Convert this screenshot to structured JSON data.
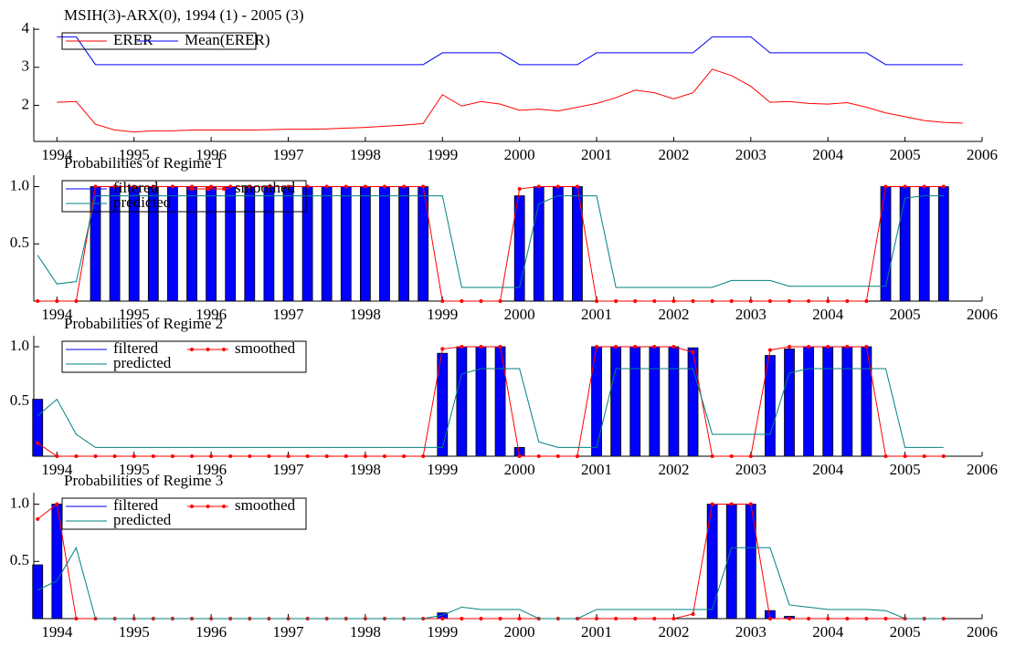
{
  "chart_data": [
    {
      "type": "line",
      "title": "MSIH(3)-ARX(0), 1994 (1) - 2005 (3)",
      "legend": "upper left",
      "x": [
        1994,
        1994.25,
        1994.5,
        1994.75,
        1995,
        1995.25,
        1995.5,
        1995.75,
        1996,
        1996.25,
        1996.5,
        1996.75,
        1997,
        1997.25,
        1997.5,
        1997.75,
        1998,
        1998.25,
        1998.5,
        1998.75,
        1999,
        1999.25,
        1999.5,
        1999.75,
        2000,
        2000.25,
        2000.5,
        2000.75,
        2001,
        2001.25,
        2001.5,
        2001.75,
        2002,
        2002.25,
        2002.5,
        2002.75,
        2003,
        2003.25,
        2003.5,
        2003.75,
        2004,
        2004.25,
        2004.5,
        2004.75,
        2005,
        2005.25,
        2005.5,
        2005.75
      ],
      "series": [
        {
          "name": "ERER",
          "color": "#ff0000",
          "type": "line",
          "values": [
            2.08,
            2.1,
            1.5,
            1.35,
            1.3,
            1.33,
            1.33,
            1.35,
            1.35,
            1.35,
            1.35,
            1.36,
            1.37,
            1.37,
            1.38,
            1.4,
            1.42,
            1.45,
            1.48,
            1.52,
            2.28,
            1.98,
            2.1,
            2.03,
            1.87,
            1.9,
            1.85,
            1.95,
            2.05,
            2.2,
            2.4,
            2.33,
            2.17,
            2.33,
            2.95,
            2.78,
            2.5,
            2.08,
            2.1,
            2.05,
            2.03,
            2.07,
            1.95,
            1.8,
            1.7,
            1.6,
            1.55,
            1.53
          ]
        },
        {
          "name": "Mean(ERER)",
          "color": "#0000ff",
          "type": "line",
          "values": [
            3.8,
            3.8,
            3.07,
            3.07,
            3.07,
            3.07,
            3.07,
            3.07,
            3.07,
            3.07,
            3.07,
            3.07,
            3.07,
            3.07,
            3.07,
            3.07,
            3.07,
            3.07,
            3.07,
            3.07,
            3.38,
            3.38,
            3.38,
            3.38,
            3.07,
            3.07,
            3.07,
            3.07,
            3.38,
            3.38,
            3.38,
            3.38,
            3.38,
            3.38,
            3.8,
            3.8,
            3.8,
            3.38,
            3.38,
            3.38,
            3.38,
            3.38,
            3.38,
            3.07,
            3.07,
            3.07,
            3.07,
            3.07
          ]
        }
      ],
      "xlim": [
        1993.7,
        2006
      ],
      "ylim": [
        1.05,
        4.05
      ],
      "xticks": [
        1994,
        1995,
        1996,
        1997,
        1998,
        1999,
        2000,
        2001,
        2002,
        2003,
        2004,
        2005,
        2006
      ],
      "yticks": [
        2,
        3,
        4
      ]
    },
    {
      "type": "combo",
      "title": "Probabilities of Regime 1",
      "legend": "upper left",
      "x": [
        1993.75,
        1994,
        1994.25,
        1994.5,
        1994.75,
        1995,
        1995.25,
        1995.5,
        1995.75,
        1996,
        1996.25,
        1996.5,
        1996.75,
        1997,
        1997.25,
        1997.5,
        1997.75,
        1998,
        1998.25,
        1998.5,
        1998.75,
        1999,
        1999.25,
        1999.5,
        1999.75,
        2000,
        2000.25,
        2000.5,
        2000.75,
        2001,
        2001.25,
        2001.5,
        2001.75,
        2002,
        2002.25,
        2002.5,
        2002.75,
        2003,
        2003.25,
        2003.5,
        2003.75,
        2004,
        2004.25,
        2004.5,
        2004.75,
        2005,
        2005.25,
        2005.5
      ],
      "series": [
        {
          "name": "filtered",
          "color": "#0000ff",
          "type": "bar",
          "values": [
            0,
            0,
            0,
            1,
            1,
            1,
            1,
            1,
            1,
            1,
            1,
            1,
            1,
            1,
            1,
            1,
            1,
            1,
            1,
            1,
            1,
            0,
            0,
            0,
            0,
            0.92,
            1,
            1,
            1,
            0,
            0,
            0,
            0,
            0,
            0,
            0,
            0,
            0,
            0,
            0,
            0,
            0,
            0,
            0,
            1,
            1,
            1,
            1
          ]
        },
        {
          "name": "smoothed",
          "color": "#ff0000",
          "type": "line",
          "markers": true,
          "values": [
            0,
            0,
            0,
            1,
            1,
            1,
            1,
            1,
            1,
            1,
            1,
            1,
            1,
            1,
            1,
            1,
            1,
            1,
            1,
            1,
            1,
            0,
            0,
            0,
            0,
            0.98,
            1,
            1,
            1,
            0,
            0,
            0,
            0,
            0,
            0,
            0,
            0,
            0,
            0,
            0,
            0,
            0,
            0,
            0,
            1,
            1,
            1,
            1
          ]
        },
        {
          "name": "predicted",
          "color": "#008080",
          "type": "line",
          "values": [
            0.4,
            0.15,
            0.17,
            0.92,
            0.92,
            0.92,
            0.92,
            0.92,
            0.92,
            0.92,
            0.92,
            0.92,
            0.92,
            0.92,
            0.92,
            0.92,
            0.92,
            0.92,
            0.92,
            0.92,
            0.92,
            0.92,
            0.12,
            0.12,
            0.12,
            0.12,
            0.85,
            0.92,
            0.92,
            0.92,
            0.12,
            0.12,
            0.12,
            0.12,
            0.12,
            0.12,
            0.18,
            0.18,
            0.18,
            0.13,
            0.13,
            0.13,
            0.13,
            0.13,
            0.13,
            0.9,
            0.92,
            0.92
          ]
        }
      ],
      "xlim": [
        1993.7,
        2006
      ],
      "ylim": [
        0,
        1.1
      ],
      "xticks": [
        1994,
        1995,
        1996,
        1997,
        1998,
        1999,
        2000,
        2001,
        2002,
        2003,
        2004,
        2005,
        2006
      ],
      "yticks": [
        0.5,
        {
          "value": 1,
          "label": "1.0"
        }
      ]
    },
    {
      "type": "combo",
      "title": "Probabilities of Regime 2",
      "legend": "upper left",
      "x": [
        1993.75,
        1994,
        1994.25,
        1994.5,
        1994.75,
        1995,
        1995.25,
        1995.5,
        1995.75,
        1996,
        1996.25,
        1996.5,
        1996.75,
        1997,
        1997.25,
        1997.5,
        1997.75,
        1998,
        1998.25,
        1998.5,
        1998.75,
        1999,
        1999.25,
        1999.5,
        1999.75,
        2000,
        2000.25,
        2000.5,
        2000.75,
        2001,
        2001.25,
        2001.5,
        2001.75,
        2002,
        2002.25,
        2002.5,
        2002.75,
        2003,
        2003.25,
        2003.5,
        2003.75,
        2004,
        2004.25,
        2004.5,
        2004.75,
        2005,
        2005.25,
        2005.5
      ],
      "series": [
        {
          "name": "filtered",
          "color": "#0000ff",
          "type": "bar",
          "values": [
            0.52,
            0,
            0,
            0,
            0,
            0,
            0,
            0,
            0,
            0,
            0,
            0,
            0,
            0,
            0,
            0,
            0,
            0,
            0,
            0,
            0,
            0.94,
            1,
            1,
            1,
            0.08,
            0,
            0,
            0,
            1,
            1,
            1,
            1,
            1,
            0.99,
            0,
            0,
            0,
            0.92,
            0.98,
            1,
            1,
            1,
            1,
            0,
            0,
            0,
            0
          ]
        },
        {
          "name": "smoothed",
          "color": "#ff0000",
          "type": "line",
          "markers": true,
          "values": [
            0.12,
            0,
            0,
            0,
            0,
            0,
            0,
            0,
            0,
            0,
            0,
            0,
            0,
            0,
            0,
            0,
            0,
            0,
            0,
            0,
            0,
            0.98,
            1,
            1,
            1,
            0,
            0,
            0,
            0,
            1,
            1,
            1,
            1,
            1,
            0.95,
            0,
            0,
            0,
            0.97,
            1,
            1,
            1,
            1,
            1,
            0,
            0,
            0,
            0
          ]
        },
        {
          "name": "predicted",
          "color": "#008080",
          "type": "line",
          "values": [
            0.37,
            0.52,
            0.2,
            0.08,
            0.08,
            0.08,
            0.08,
            0.08,
            0.08,
            0.08,
            0.08,
            0.08,
            0.08,
            0.08,
            0.08,
            0.08,
            0.08,
            0.08,
            0.08,
            0.08,
            0.08,
            0.08,
            0.75,
            0.8,
            0.8,
            0.8,
            0.13,
            0.08,
            0.08,
            0.08,
            0.8,
            0.8,
            0.8,
            0.8,
            0.8,
            0.2,
            0.2,
            0.2,
            0.2,
            0.76,
            0.8,
            0.8,
            0.8,
            0.8,
            0.8,
            0.08,
            0.08,
            0.08
          ]
        }
      ],
      "xlim": [
        1993.7,
        2006
      ],
      "ylim": [
        0,
        1.1
      ],
      "xticks": [
        1994,
        1995,
        1996,
        1997,
        1998,
        1999,
        2000,
        2001,
        2002,
        2003,
        2004,
        2005,
        2006
      ],
      "yticks": [
        0.5,
        {
          "value": 1,
          "label": "1.0"
        }
      ]
    },
    {
      "type": "combo",
      "title": "Probabilities of Regime 3",
      "legend": "upper left",
      "x": [
        1993.75,
        1994,
        1994.25,
        1994.5,
        1994.75,
        1995,
        1995.25,
        1995.5,
        1995.75,
        1996,
        1996.25,
        1996.5,
        1996.75,
        1997,
        1997.25,
        1997.5,
        1997.75,
        1998,
        1998.25,
        1998.5,
        1998.75,
        1999,
        1999.25,
        1999.5,
        1999.75,
        2000,
        2000.25,
        2000.5,
        2000.75,
        2001,
        2001.25,
        2001.5,
        2001.75,
        2002,
        2002.25,
        2002.5,
        2002.75,
        2003,
        2003.25,
        2003.5,
        2003.75,
        2004,
        2004.25,
        2004.5,
        2004.75,
        2005,
        2005.25,
        2005.5
      ],
      "series": [
        {
          "name": "filtered",
          "color": "#0000ff",
          "type": "bar",
          "values": [
            0.47,
            1,
            0,
            0,
            0,
            0,
            0,
            0,
            0,
            0,
            0,
            0,
            0,
            0,
            0,
            0,
            0,
            0,
            0,
            0,
            0,
            0.05,
            0,
            0,
            0,
            0,
            0,
            0,
            0,
            0,
            0,
            0,
            0,
            0,
            0,
            1,
            1,
            1,
            0.07,
            0.02,
            0,
            0,
            0,
            0,
            0,
            0,
            0,
            0
          ]
        },
        {
          "name": "smoothed",
          "color": "#ff0000",
          "type": "line",
          "markers": true,
          "values": [
            0.87,
            1,
            0,
            0,
            0,
            0,
            0,
            0,
            0,
            0,
            0,
            0,
            0,
            0,
            0,
            0,
            0,
            0,
            0,
            0,
            0,
            0,
            0,
            0,
            0,
            0,
            0,
            0,
            0,
            0,
            0,
            0,
            0,
            0,
            0.04,
            1,
            1,
            1,
            0,
            0,
            0,
            0,
            0,
            0,
            0,
            0,
            0,
            0
          ]
        },
        {
          "name": "predicted",
          "color": "#008080",
          "type": "line",
          "values": [
            0.25,
            0.33,
            0.62,
            0,
            0,
            0,
            0,
            0,
            0,
            0,
            0,
            0,
            0,
            0,
            0,
            0,
            0,
            0,
            0,
            0,
            0,
            0.03,
            0.1,
            0.08,
            0.08,
            0.08,
            0,
            0,
            0,
            0.08,
            0.08,
            0.08,
            0.08,
            0.08,
            0.08,
            0.08,
            0.62,
            0.62,
            0.62,
            0.12,
            0.1,
            0.08,
            0.08,
            0.08,
            0.07,
            0,
            0,
            0
          ]
        }
      ],
      "xlim": [
        1993.7,
        2006
      ],
      "ylim": [
        0,
        1.1
      ],
      "xticks": [
        1994,
        1995,
        1996,
        1997,
        1998,
        1999,
        2000,
        2001,
        2002,
        2003,
        2004,
        2005,
        2006
      ],
      "yticks": [
        0.5,
        {
          "value": 1,
          "label": "1.0"
        }
      ]
    }
  ]
}
